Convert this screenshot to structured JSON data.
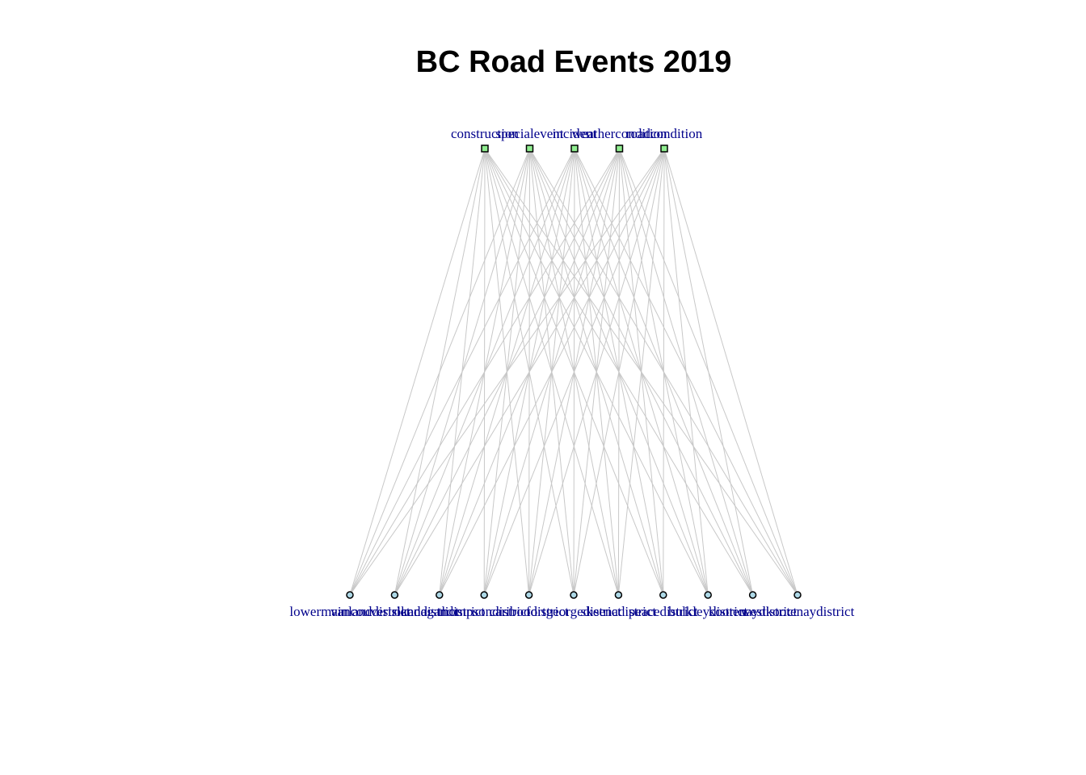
{
  "title": "BC Road Events 2019",
  "colors": {
    "event_node_fill": "#90ee90",
    "district_node_fill": "#add8e6",
    "node_stroke": "#000000",
    "edge": "#c8c8c8",
    "label": "#00008b"
  },
  "event_types": [
    {
      "id": "construction",
      "label": "construction"
    },
    {
      "id": "specialevent",
      "label": "specialevent"
    },
    {
      "id": "incident",
      "label": "incident"
    },
    {
      "id": "weathercondition",
      "label": "weathercondition"
    },
    {
      "id": "roadcondition",
      "label": "roadcondition"
    }
  ],
  "districts": [
    {
      "id": "lowermainlanddistrict",
      "label": "lowermainlanddistrict"
    },
    {
      "id": "vancouverislanddistrict",
      "label": "vancouverislanddistrict"
    },
    {
      "id": "okanagandistrict",
      "label": "okanagandistrict"
    },
    {
      "id": "thompsondistrict",
      "label": "thompsondistrict"
    },
    {
      "id": "cariboodistrict",
      "label": "cariboodistrict"
    },
    {
      "id": "fortgeorgedistrict",
      "label": "fortgeorgedistrict"
    },
    {
      "id": "skeenadistrict",
      "label": "skeenadistrict"
    },
    {
      "id": "peacedistrict",
      "label": "peacedistrict"
    },
    {
      "id": "bulkleydistrict",
      "label": "bulkleydistrict"
    },
    {
      "id": "kootenaydistrict",
      "label": "kootenaydistrict"
    },
    {
      "id": "westkootenaydistrict",
      "label": "westkootenaydistrict"
    }
  ],
  "edges": "all_pairs"
}
